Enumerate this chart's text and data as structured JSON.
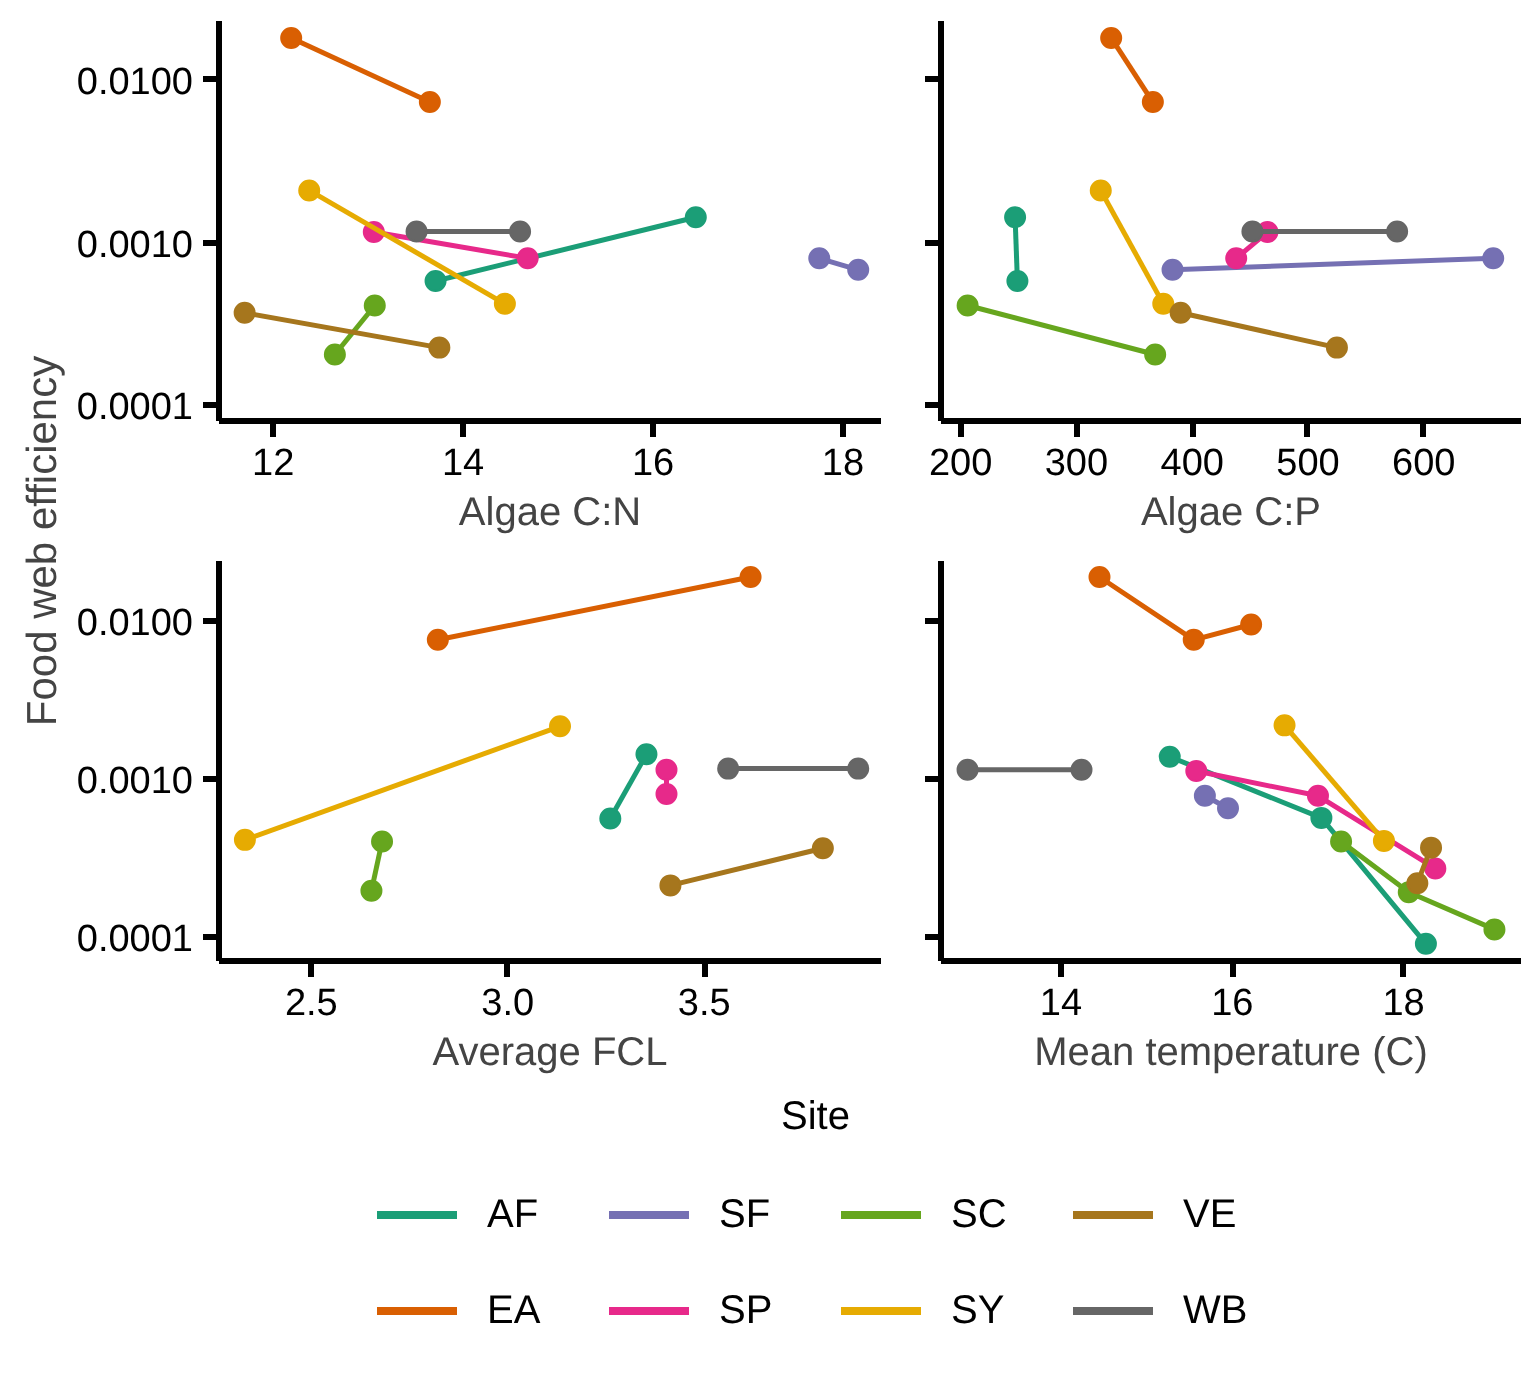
{
  "chart_data": [
    {
      "type": "line",
      "xlabel": "Algae C:N",
      "ylabel": "Food web efficiency",
      "log": true,
      "grid": false,
      "marker": "circle",
      "line_style": "solid",
      "xlim": [
        11.43,
        18.4
      ],
      "xticks": [
        12,
        14,
        16,
        18
      ],
      "ylim": [
        8e-05,
        0.023
      ],
      "yticks": [
        {
          "value": 0.0001,
          "label": "0.0001"
        },
        {
          "value": 0.001,
          "label": "0.0010"
        },
        {
          "value": 0.01,
          "label": "0.0100"
        }
      ],
      "series": [
        {
          "color": "#1b9e77",
          "x": [
            13.71,
            16.45
          ],
          "values": [
            0.00058,
            0.00143
          ]
        },
        {
          "color": "#d95f02",
          "x": [
            12.19,
            13.65
          ],
          "values": [
            0.0181,
            0.0073
          ]
        },
        {
          "color": "#7570b3",
          "x": [
            17.75,
            18.16
          ],
          "values": [
            0.0008,
            0.00068
          ]
        },
        {
          "color": "#e7298a",
          "x": [
            13.06,
            14.68
          ],
          "values": [
            0.00116,
            0.0008
          ]
        },
        {
          "color": "#66a61e",
          "x": [
            12.65,
            13.07
          ],
          "values": [
            0.000205,
            0.00041
          ]
        },
        {
          "color": "#e6ab02",
          "x": [
            12.38,
            14.44
          ],
          "values": [
            0.00209,
            0.00042
          ]
        },
        {
          "color": "#a6761d",
          "x": [
            11.7,
            13.75
          ],
          "values": [
            0.00037,
            0.000226
          ]
        },
        {
          "color": "#666666",
          "x": [
            13.51,
            14.6
          ],
          "values": [
            0.00117,
            0.00117
          ]
        }
      ]
    },
    {
      "type": "line",
      "xlabel": "Algae C:P",
      "log": true,
      "grid": false,
      "marker": "circle",
      "line_style": "solid",
      "tick_labels": "x",
      "xlim": [
        183,
        684
      ],
      "xticks": [
        200,
        300,
        400,
        500,
        600
      ],
      "ylim": [
        8e-05,
        0.023
      ],
      "yticks": [
        {
          "value": 0.0001,
          "label": null
        },
        {
          "value": 0.001,
          "label": null
        },
        {
          "value": 0.01,
          "label": null
        }
      ],
      "series": [
        {
          "color": "#1b9e77",
          "x": [
            249,
            247
          ],
          "values": [
            0.00058,
            0.00143
          ]
        },
        {
          "color": "#d95f02",
          "x": [
            330,
            366
          ],
          "values": [
            0.0181,
            0.0073
          ]
        },
        {
          "color": "#7570b3",
          "x": [
            660,
            383
          ],
          "values": [
            0.0008,
            0.00068
          ]
        },
        {
          "color": "#e7298a",
          "x": [
            465,
            438
          ],
          "values": [
            0.00116,
            0.0008
          ]
        },
        {
          "color": "#66a61e",
          "x": [
            368,
            206
          ],
          "values": [
            0.000205,
            0.00041
          ]
        },
        {
          "color": "#e6ab02",
          "x": [
            321,
            375
          ],
          "values": [
            0.00209,
            0.00042
          ]
        },
        {
          "color": "#a6761d",
          "x": [
            390,
            525
          ],
          "values": [
            0.00037,
            0.000226
          ]
        },
        {
          "color": "#666666",
          "x": [
            452,
            577
          ],
          "values": [
            0.00117,
            0.00117
          ]
        }
      ]
    },
    {
      "type": "line",
      "xlabel": "Average FCL",
      "log": true,
      "grid": false,
      "marker": "circle",
      "line_style": "solid",
      "xlim": [
        2.265,
        3.95
      ],
      "xticks": [
        {
          "value": 2.5,
          "label": "2.5"
        },
        {
          "value": 3.0,
          "label": "3.0"
        },
        {
          "value": 3.5,
          "label": "3.5"
        }
      ],
      "ylim": [
        7e-05,
        0.024
      ],
      "yticks": [
        {
          "value": 0.0001,
          "label": "0.0001"
        },
        {
          "value": 0.001,
          "label": "0.0010"
        },
        {
          "value": 0.01,
          "label": "0.0100"
        }
      ],
      "series": [
        {
          "color": "#1b9e77",
          "x": [
            3.261,
            3.353
          ],
          "values": [
            0.00056,
            0.00143
          ]
        },
        {
          "color": "#d95f02",
          "x": [
            3.618,
            2.822
          ],
          "values": [
            0.019,
            0.0076
          ]
        },
        {
          "color": "#e7298a",
          "x": [
            3.404,
            3.404
          ],
          "values": [
            0.00114,
            0.0008
          ]
        },
        {
          "color": "#66a61e",
          "x": [
            2.653,
            2.68
          ],
          "values": [
            0.000195,
            0.0004
          ]
        },
        {
          "color": "#e6ab02",
          "x": [
            3.133,
            2.331
          ],
          "values": [
            0.00215,
            0.00041
          ]
        },
        {
          "color": "#a6761d",
          "x": [
            3.802,
            3.414
          ],
          "values": [
            0.000363,
            0.000211
          ]
        },
        {
          "color": "#666666",
          "x": [
            3.561,
            3.892
          ],
          "values": [
            0.00116,
            0.00116
          ]
        }
      ]
    },
    {
      "type": "line",
      "xlabel": "Mean temperature (C)",
      "log": true,
      "grid": false,
      "marker": "circle",
      "line_style": "solid",
      "tick_labels": "x",
      "legend": "bottom",
      "legend_title": "Site",
      "xlim": [
        12.6,
        19.37
      ],
      "xticks": [
        14,
        16,
        18
      ],
      "ylim": [
        7e-05,
        0.024
      ],
      "yticks": [
        {
          "value": 0.0001,
          "label": null
        },
        {
          "value": 0.001,
          "label": null
        },
        {
          "value": 0.01,
          "label": null
        }
      ],
      "series": [
        {
          "name": "AF",
          "color": "#1b9e77",
          "x": [
            15.27,
            17.04,
            18.26
          ],
          "values": [
            0.00138,
            0.000565,
            9e-05
          ]
        },
        {
          "name": "EA",
          "color": "#d95f02",
          "x": [
            14.45,
            15.55,
            16.22
          ],
          "values": [
            0.019,
            0.0076,
            0.0095
          ]
        },
        {
          "name": "SF",
          "color": "#7570b3",
          "x": [
            15.68,
            15.95
          ],
          "values": [
            0.00078,
            0.00065
          ]
        },
        {
          "name": "SP",
          "color": "#e7298a",
          "x": [
            15.58,
            17.0,
            18.37
          ],
          "values": [
            0.00112,
            0.00078,
            0.00027
          ]
        },
        {
          "name": "SC",
          "color": "#66a61e",
          "x": [
            17.27,
            18.06,
            19.06
          ],
          "values": [
            0.0004,
            0.000191,
            0.000111
          ]
        },
        {
          "name": "SY",
          "color": "#e6ab02",
          "x": [
            16.61,
            17.77
          ],
          "values": [
            0.00218,
            0.000404
          ]
        },
        {
          "name": "VE",
          "color": "#a6761d",
          "x": [
            18.32,
            18.16
          ],
          "values": [
            0.000366,
            0.000218
          ]
        },
        {
          "name": "WB",
          "color": "#666666",
          "x": [
            12.91,
            14.24
          ],
          "values": [
            0.00114,
            0.00114
          ]
        }
      ]
    }
  ]
}
